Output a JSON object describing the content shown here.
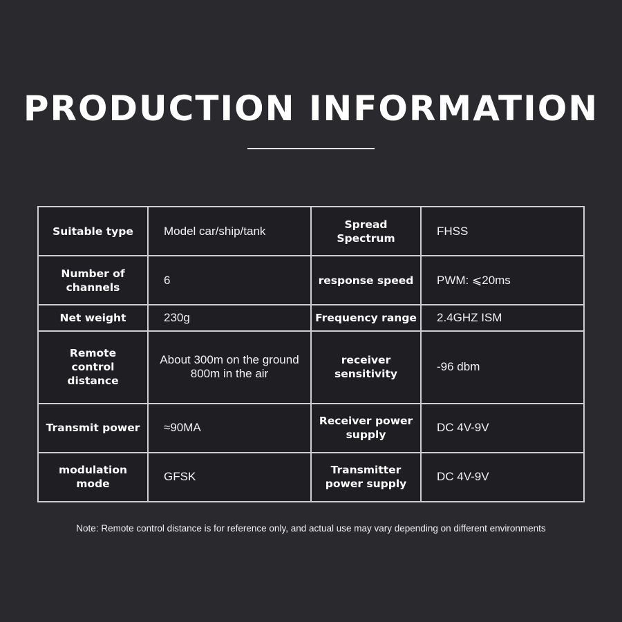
{
  "title": "PRODUCTION INFORMATION",
  "rows": [
    {
      "k1": "Suitable type",
      "v1": "Model car/ship/tank",
      "k2": "Spread Spectrum",
      "v2": "FHSS"
    },
    {
      "k1": "Number of channels",
      "v1": "6",
      "k2": "response speed",
      "v2": "PWM: ⩽20ms"
    },
    {
      "k1": "Net weight",
      "v1": "230g",
      "k2": "Frequency range",
      "v2": "2.4GHZ  ISM"
    },
    {
      "k1": "Remote control distance",
      "v1": "About 300m on the ground 800m in the air",
      "k2": "receiver sensitivity",
      "v2": "-96 dbm"
    },
    {
      "k1": "Transmit power",
      "v1": "≈90MA",
      "k2": "Receiver power supply",
      "v2": "DC 4V-9V"
    },
    {
      "k1": "modulation mode",
      "v1": "GFSK",
      "k2": "Transmitter power supply",
      "v2": "DC 4V-9V"
    }
  ],
  "note": "Note: Remote control distance is for reference only, and actual use may vary depending on different environments"
}
